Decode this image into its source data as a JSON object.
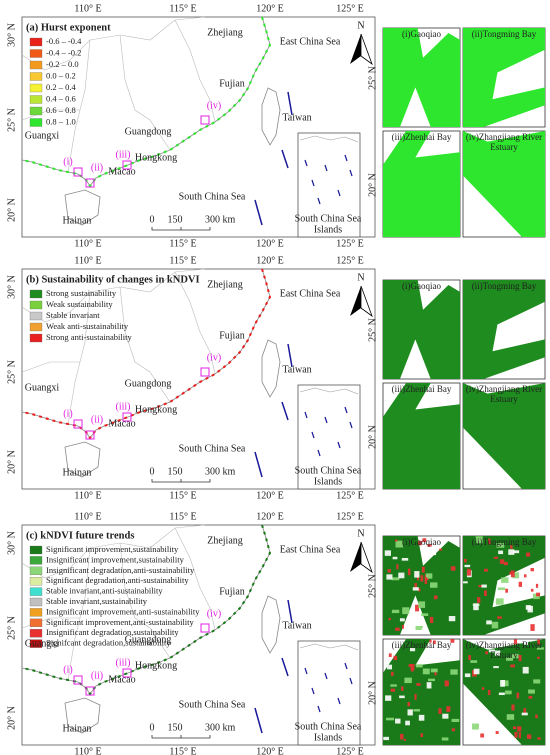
{
  "lon_labels": [
    "110° E",
    "115° E",
    "120° E",
    "125° E"
  ],
  "lat_labels": [
    "30° N",
    "25° N",
    "20° N"
  ],
  "inset_lat_labels": [
    "25° N",
    "20° N"
  ],
  "panels": [
    {
      "title": "(a) Hurst exponent",
      "legend": [
        {
          "label": "-0.6 – -0.4",
          "color": "#e8221a"
        },
        {
          "label": "-0.4 – -0.2",
          "color": "#f05a14"
        },
        {
          "label": "-0.2 – 0.0",
          "color": "#f39a1e"
        },
        {
          "label": "0.0 – 0.2",
          "color": "#f7c830"
        },
        {
          "label": "0.2 – 0.4",
          "color": "#f4f232"
        },
        {
          "label": "0.4 – 0.6",
          "color": "#b8e632"
        },
        {
          "label": "0.6 – 0.8",
          "color": "#6ed83a"
        },
        {
          "label": "0.8 – 1.0",
          "color": "#2ee62e"
        }
      ],
      "places": [
        "Zhejiang",
        "East China Sea",
        "Fujian",
        "Taiwan",
        "Guangxi",
        "Guangdong",
        "Hongkong",
        "Macao",
        "South China Sea",
        "Hainan"
      ],
      "inset_label": [
        "South China Sea",
        "Islands"
      ],
      "markers": [
        "(i)",
        "(ii)",
        "(iii)",
        "(iv)"
      ],
      "scale": [
        "0",
        "150",
        "300 km"
      ],
      "north": "N",
      "thumbnails": [
        [
          "(i)Gaoqiao"
        ],
        [
          "(ii)Tongming Bay"
        ],
        [
          "(iii)Zhenhai Bay"
        ],
        [
          "(iv)Zhangjiang River",
          "Estuary"
        ]
      ]
    },
    {
      "title": "(b) Sustainability of changes in kNDVI",
      "legend": [
        {
          "label": "Strong sustainability",
          "color": "#1e8c1e"
        },
        {
          "label": "Weak sustainability",
          "color": "#7ad03c"
        },
        {
          "label": "Stable invariant",
          "color": "#c8c8c8"
        },
        {
          "label": "Weak anti-sustainability",
          "color": "#f0a030"
        },
        {
          "label": "Strong anti-sustainability",
          "color": "#e82020"
        }
      ],
      "places": [
        "Zhejiang",
        "East China Sea",
        "Fujian",
        "Taiwan",
        "Guangxi",
        "Guangdong",
        "Hongkong",
        "Macao",
        "South China Sea",
        "Hainan"
      ],
      "inset_label": [
        "South China Sea",
        "Islands"
      ],
      "markers": [
        "(i)",
        "(ii)",
        "(iii)",
        "(iv)"
      ],
      "scale": [
        "0",
        "150",
        "300 km"
      ],
      "north": "N",
      "thumbnails": [
        [
          "(i)Gaoqiao"
        ],
        [
          "(ii)Tongming Bay"
        ],
        [
          "(iii)Zhenhai Bay"
        ],
        [
          "(iv)Zhangjiang River",
          "Estuary"
        ]
      ]
    },
    {
      "title": "(c) kNDVI future trends",
      "legend": [
        {
          "label": "Significant improvement,sustainability",
          "color": "#1a7a1a"
        },
        {
          "label": "Insignificant improvement,sustainability",
          "color": "#3aa83a"
        },
        {
          "label": "Insignificant degradation,anti-sustainability",
          "color": "#8cd878"
        },
        {
          "label": "Significant degradation,anti-sustainability",
          "color": "#dcecA0"
        },
        {
          "label": "Stable invariant,anti-sustainability",
          "color": "#40e0d0"
        },
        {
          "label": "Stable invariant,sustainability",
          "color": "#c0c0c0"
        },
        {
          "label": "Insignificant improvement,anti-sustainability",
          "color": "#f0a020"
        },
        {
          "label": "Significant improvement,anti-sustainability",
          "color": "#f07030"
        },
        {
          "label": "Insignificant degradation,sustainability",
          "color": "#e83030"
        },
        {
          "label": "Signifcant degradation,sustainability",
          "color": "#c01010"
        }
      ],
      "places": [
        "Zhejiang",
        "East China Sea",
        "Fujian",
        "Taiwan",
        "Guangxi",
        "Guangdong",
        "Hongkong",
        "Macao",
        "South China Sea",
        "Hainan"
      ],
      "inset_label": [
        "South China Sea",
        "Islands"
      ],
      "markers": [
        "(i)",
        "(ii)",
        "(iii)",
        "(iv)"
      ],
      "scale": [
        "0",
        "150",
        "300 km"
      ],
      "north": "N",
      "thumbnails": [
        [
          "(i)Gaoqiao"
        ],
        [
          "(ii)Tongming Bay"
        ],
        [
          "(iii)Zhenhai Bay"
        ],
        [
          "(iv)Zhangjiang River",
          "Estuary"
        ]
      ]
    }
  ]
}
